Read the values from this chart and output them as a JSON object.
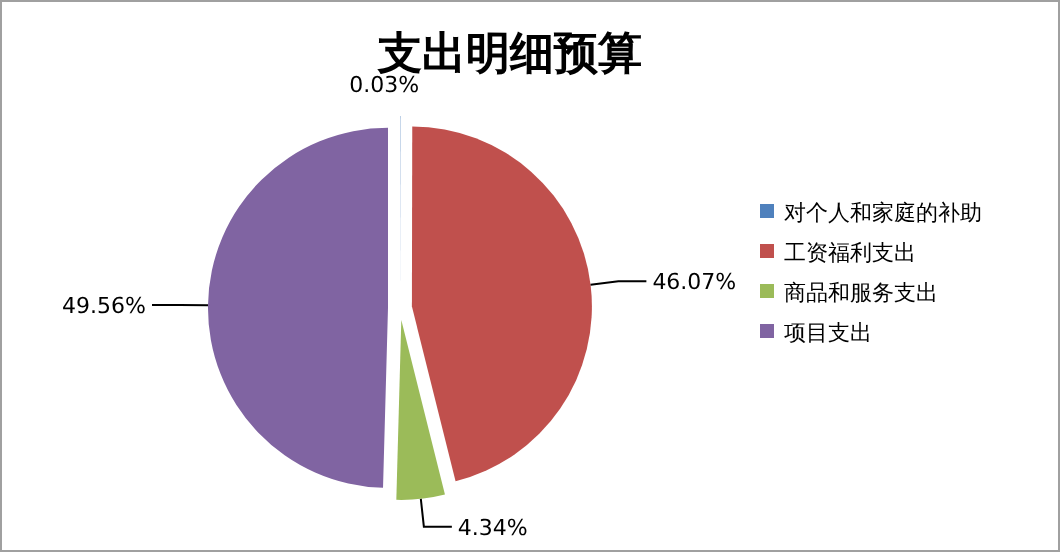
{
  "chart_data": {
    "type": "pie",
    "title": "支出明细预算",
    "categories": [
      "对个人和家庭的补助",
      "工资福利支出",
      "商品和服务支出",
      "项目支出"
    ],
    "values": [
      0.03,
      46.07,
      4.34,
      49.56
    ],
    "colors": [
      "#4f81bd",
      "#c0504d",
      "#9bbb59",
      "#8064a2"
    ],
    "value_labels": [
      "0.03%",
      "46.07%",
      "4.34%",
      "49.56%"
    ],
    "legend": "right"
  }
}
